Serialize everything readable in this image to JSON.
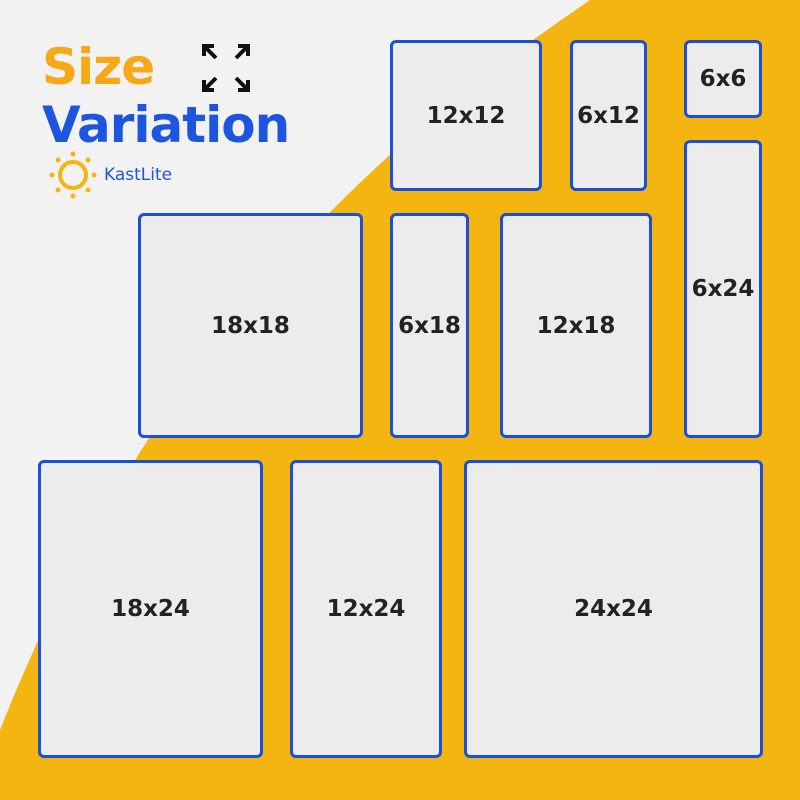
{
  "heading": {
    "line1": "Size",
    "line2": "Variation"
  },
  "brand": {
    "name": "KastLite"
  },
  "colors": {
    "yellow": "#f5b511",
    "blue": "#1b4fd8",
    "orange": "#f6a818"
  },
  "icons": {
    "expand": "expand-arrows-icon",
    "logo": "sun-icon"
  },
  "sizes": [
    "12x12",
    "6x12",
    "6x6",
    "6x24",
    "18x18",
    "6x18",
    "12x18",
    "18x24",
    "12x24",
    "24x24"
  ]
}
